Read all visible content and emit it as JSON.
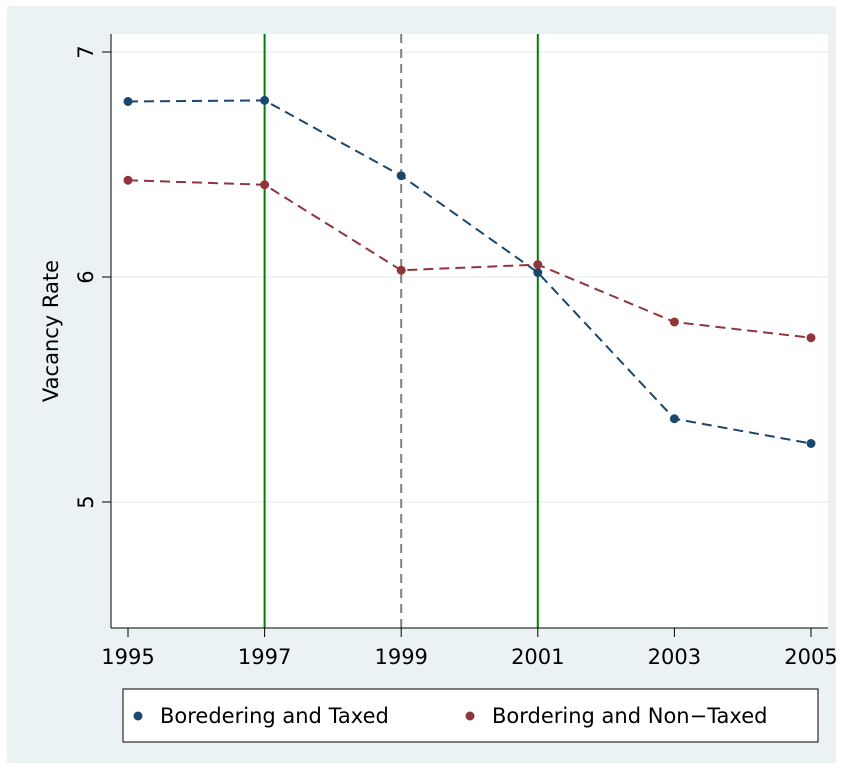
{
  "chart_data": {
    "type": "line",
    "ylabel": "Vacancy Rate",
    "xlabel": "",
    "x": [
      1995,
      1997,
      1999,
      2001,
      2003,
      2005
    ],
    "x_ticks": [
      "1995",
      "1997",
      "1999",
      "2001",
      "2003",
      "2005"
    ],
    "y_ticks": [
      "5",
      "6",
      "7"
    ],
    "xlim": [
      1995,
      2005
    ],
    "ylim": [
      4.45,
      7.1
    ],
    "grid": "horizontal",
    "series": [
      {
        "name": "Boredering and Taxed",
        "color": "#1a476f",
        "values": [
          6.78,
          6.785,
          6.45,
          6.02,
          5.37,
          5.26
        ]
      },
      {
        "name": "Bordering and Non−Taxed",
        "color": "#90353b",
        "values": [
          6.43,
          6.41,
          6.03,
          6.055,
          5.8,
          5.73
        ]
      }
    ],
    "vertical_lines": [
      {
        "x": 1997,
        "style": "solid",
        "color": "#008000"
      },
      {
        "x": 1999,
        "style": "dashed",
        "color": "#808080"
      },
      {
        "x": 2001,
        "style": "solid",
        "color": "#008000"
      }
    ],
    "legend_position": "bottom"
  }
}
